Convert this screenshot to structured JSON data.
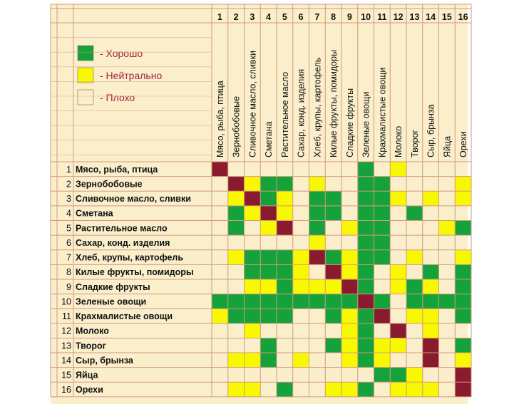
{
  "legend": [
    {
      "status": "good",
      "label": "- Хорошо"
    },
    {
      "status": "neutral",
      "label": "- Нейтрально"
    },
    {
      "status": "bad",
      "label": "- Плохо"
    }
  ],
  "colors": {
    "good": "#15a23a",
    "neutral": "#f8f800",
    "bad": "#fbeecb",
    "diagonal": "#8a1a2e",
    "paper": "#fbeecb",
    "grid": "#d09a80",
    "legend_text": "#a6253a"
  },
  "chart_data": {
    "type": "table",
    "title": "",
    "foods": [
      "Мясо, рыба, птица",
      "Зернобобовые",
      "Сливочное масло, сливки",
      "Сметана",
      "Растительное масло",
      "Сахар, конд. изделия",
      "Хлеб, крупы, картофель",
      "Килые фрукты, помидоры",
      "Сладкие фрукты",
      "Зеленые овощи",
      "Крахмалистые овощи",
      "Молоко",
      "Творог",
      "Сыр, брынза",
      "Яйца",
      "Орехи"
    ],
    "column_labels": [
      "Мясо, рыба, птица",
      "Зернобобовые",
      "Сливочное масло, сливки",
      "Сметана",
      "Растительное масло",
      "Сахар, конд. изделия",
      "Хлеб, крупы, картофель",
      "Килые фрукты, помидоры",
      "Сладкие фрукты",
      "Зеленые овощи",
      "Крахмалистые овощи",
      "Молоко",
      "Творог",
      "Сыр, брынза",
      "Яйца",
      "Орехи"
    ],
    "numbers": [
      "1",
      "2",
      "3",
      "4",
      "5",
      "6",
      "7",
      "8",
      "9",
      "10",
      "11",
      "12",
      "13",
      "14",
      "15",
      "16"
    ],
    "codes": {
      "D": "diagonal",
      "G": "good",
      "Y": "neutral",
      ".": "bad"
    },
    "matrix": [
      "D........G.Y....",
      ".DYGG.Y..GG....Y",
      ".YDGY.GG.GGY.Y.Y",
      ".GYDY.GG.GG.G...",
      ".G.YD.G.YGG...YG",
      "......Y..GG.....",
      ".YGGGYDGYGG.Y..Y",
      "..GGGY.DYG.Y.G.G",
      "..YYGYYYDG.YGY.G",
      "GGGGGGGGGDG.GGGG",
      "YGGGG..GYGD.YY.G",
      "..Y.....YG.D.Y..",
      "...G...GYGYY.D.G",
      ".YYG.Y..YGY..D.Y",
      "..........GGY..D",
      ".YY.G..YYG.YYY.D"
    ]
  }
}
